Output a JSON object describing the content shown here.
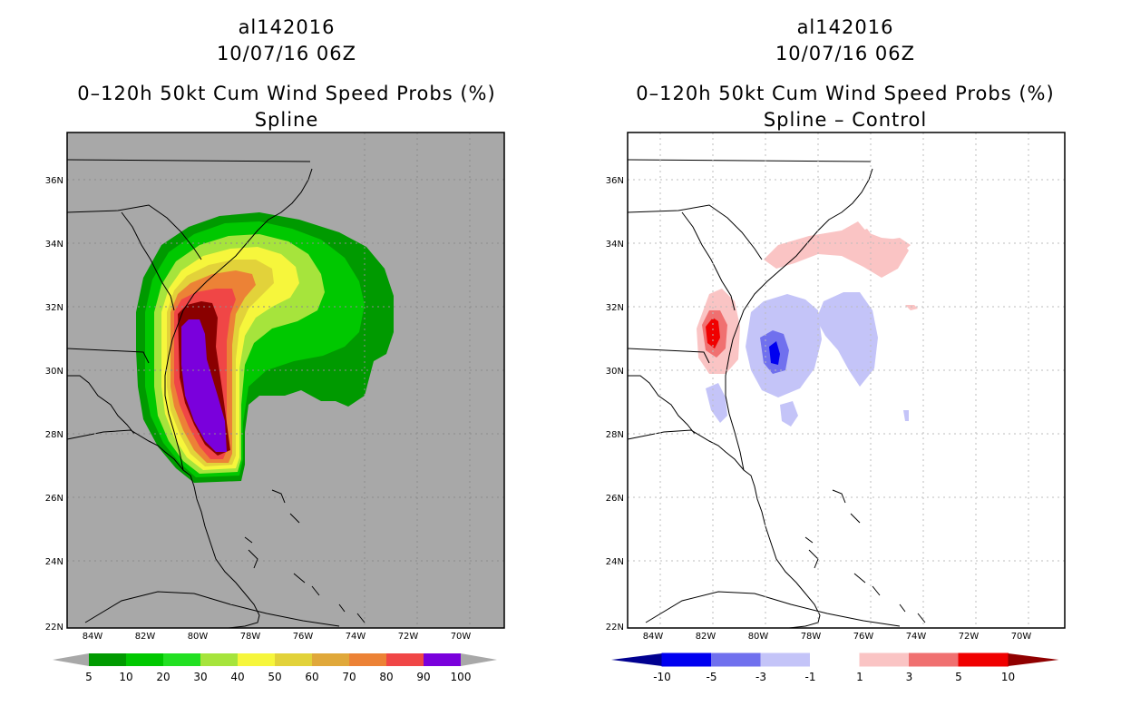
{
  "left_panel": {
    "storm_id": "al142016",
    "datetime": "10/07/16 06Z",
    "product": "0–120h 50kt Cum Wind Speed Probs (%)",
    "subtitle": "Spline",
    "colorbar": {
      "labels": [
        "5",
        "10",
        "20",
        "30",
        "40",
        "50",
        "60",
        "70",
        "80",
        "90",
        "100"
      ],
      "colors": [
        "#009a00",
        "#00c800",
        "#22e022",
        "#a6e43c",
        "#f6f63c",
        "#e2d23a",
        "#e0a83a",
        "#ec8236",
        "#f04646",
        "#8a0000",
        "#7a00dc"
      ]
    }
  },
  "right_panel": {
    "storm_id": "al142016",
    "datetime": "10/07/16 06Z",
    "product": "0–120h 50kt Cum Wind Speed Probs (%)",
    "subtitle": "Spline – Control",
    "colorbar": {
      "labels": [
        "-10",
        "-5",
        "-3",
        "-1",
        "1",
        "3",
        "5",
        "10"
      ],
      "colors": [
        "#000090",
        "#0000f0",
        "#7070ee",
        "#c4c4f8",
        "#ffffff",
        "#fac4c4",
        "#f07070",
        "#f00000",
        "#900000"
      ]
    }
  },
  "map": {
    "lat_labels": [
      "36N",
      "34N",
      "32N",
      "30N",
      "28N",
      "26N",
      "24N",
      "22N"
    ],
    "lon_labels": [
      "84W",
      "82W",
      "80W",
      "78W",
      "76W",
      "74W",
      "72W",
      "70W"
    ],
    "colors": {
      "land_gray": "#a8a8a8",
      "coast": "#000000",
      "grid": "#999999"
    }
  }
}
